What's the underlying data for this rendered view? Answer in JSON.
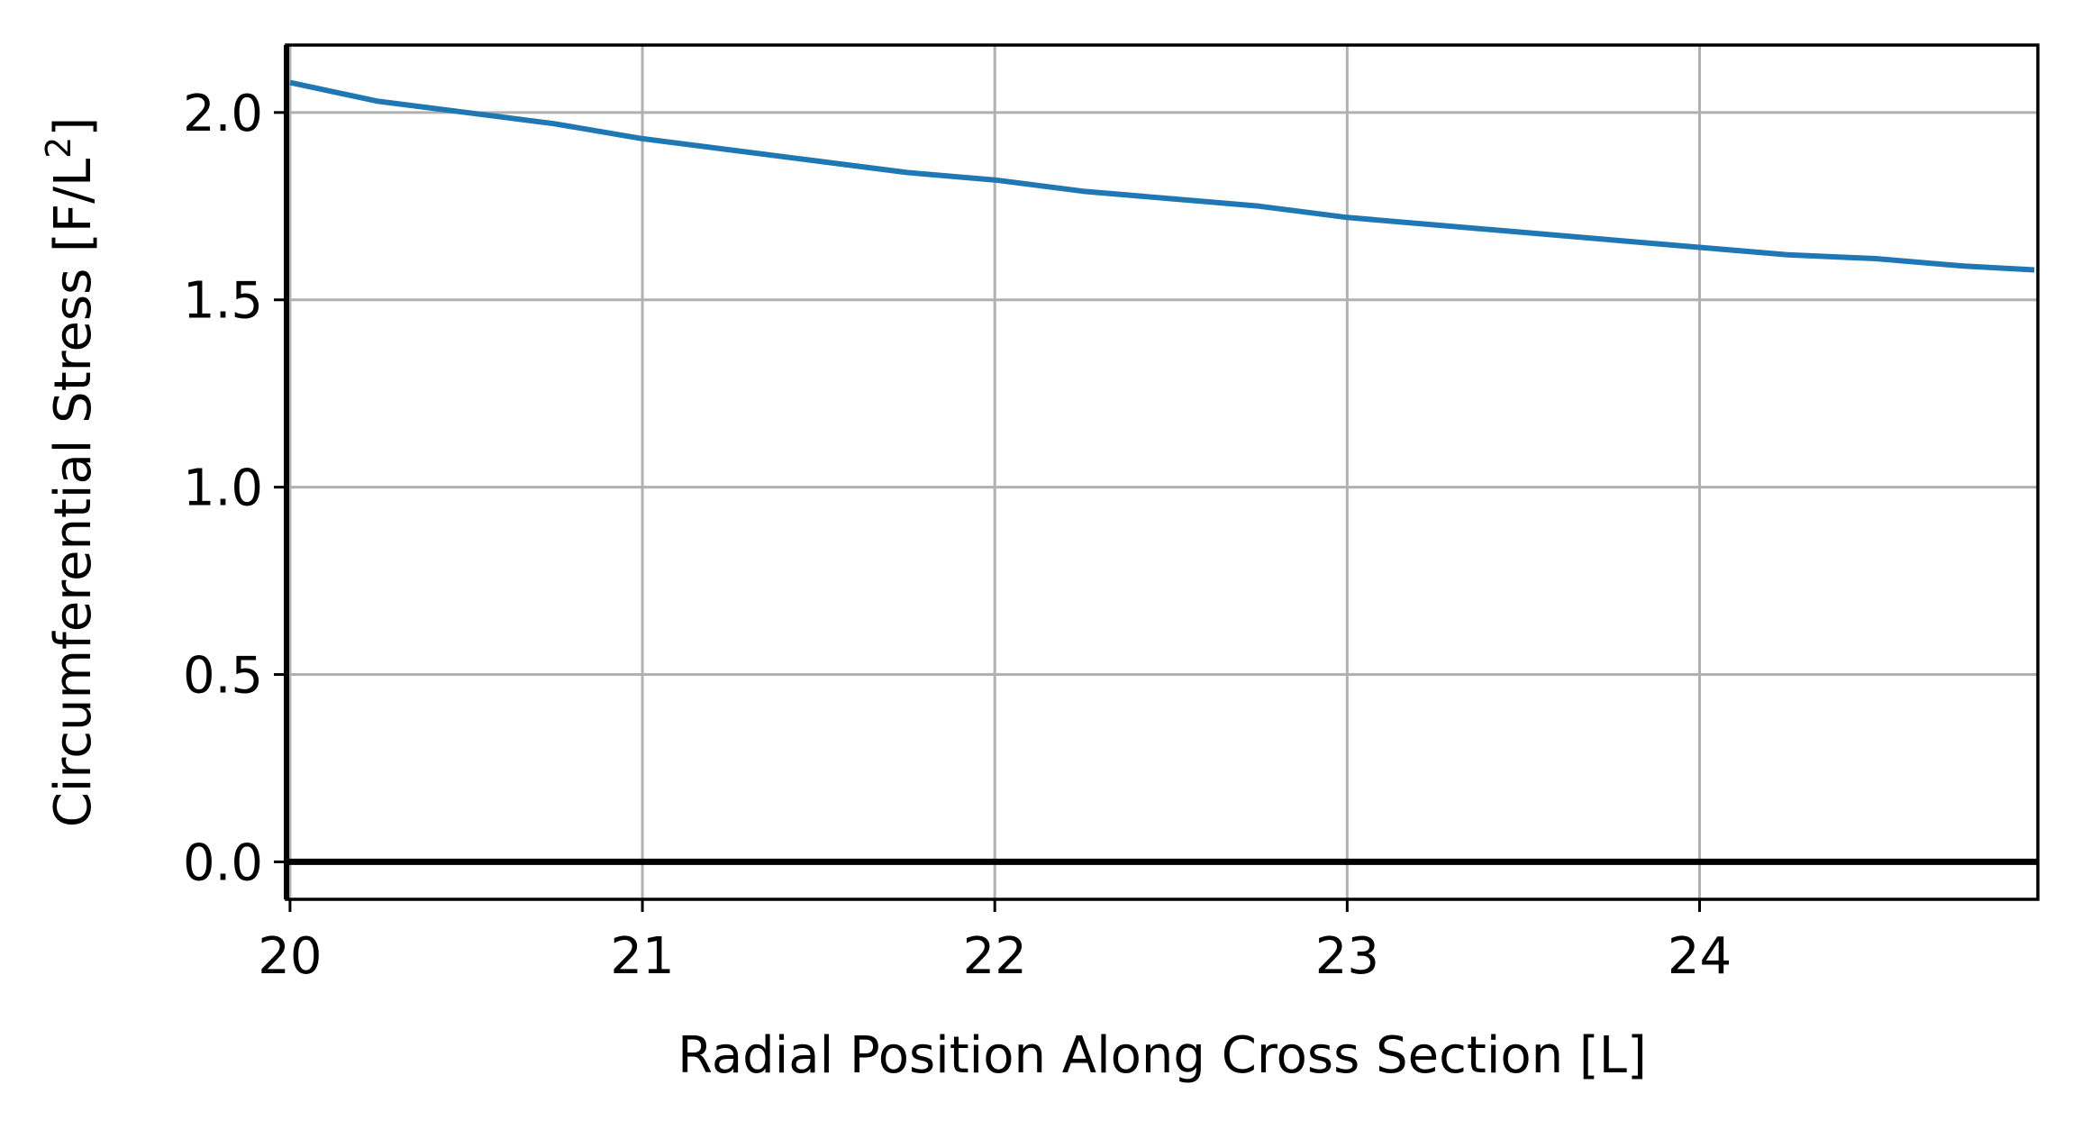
{
  "chart_data": {
    "type": "line",
    "title": "",
    "xlabel": "Radial Position Along Cross Section [L]",
    "ylabel_parts": {
      "main": "Circumferential Stress [F/L",
      "sup": "2",
      "close": "]"
    },
    "xlim": [
      19.99,
      24.96
    ],
    "ylim": [
      -0.1,
      2.18
    ],
    "xticks": [
      20,
      21,
      22,
      23,
      24
    ],
    "xtick_labels": [
      "20",
      "21",
      "22",
      "23",
      "24"
    ],
    "yticks": [
      0.0,
      0.5,
      1.0,
      1.5,
      2.0
    ],
    "ytick_labels": [
      "0.0",
      "0.5",
      "1.0",
      "1.5",
      "2.0"
    ],
    "grid": true,
    "reference_line": {
      "y": 0.0,
      "color": "#000000"
    },
    "series": [
      {
        "color": "#1f77b4",
        "x": [
          20.0,
          20.25,
          20.5,
          20.75,
          21.0,
          21.25,
          21.5,
          21.75,
          22.0,
          22.25,
          22.5,
          22.75,
          23.0,
          23.25,
          23.5,
          23.75,
          24.0,
          24.25,
          24.5,
          24.75,
          24.95
        ],
        "y": [
          2.08,
          2.03,
          2.0,
          1.97,
          1.93,
          1.9,
          1.87,
          1.84,
          1.82,
          1.79,
          1.77,
          1.75,
          1.72,
          1.7,
          1.68,
          1.66,
          1.64,
          1.62,
          1.61,
          1.59,
          1.58
        ]
      }
    ]
  }
}
